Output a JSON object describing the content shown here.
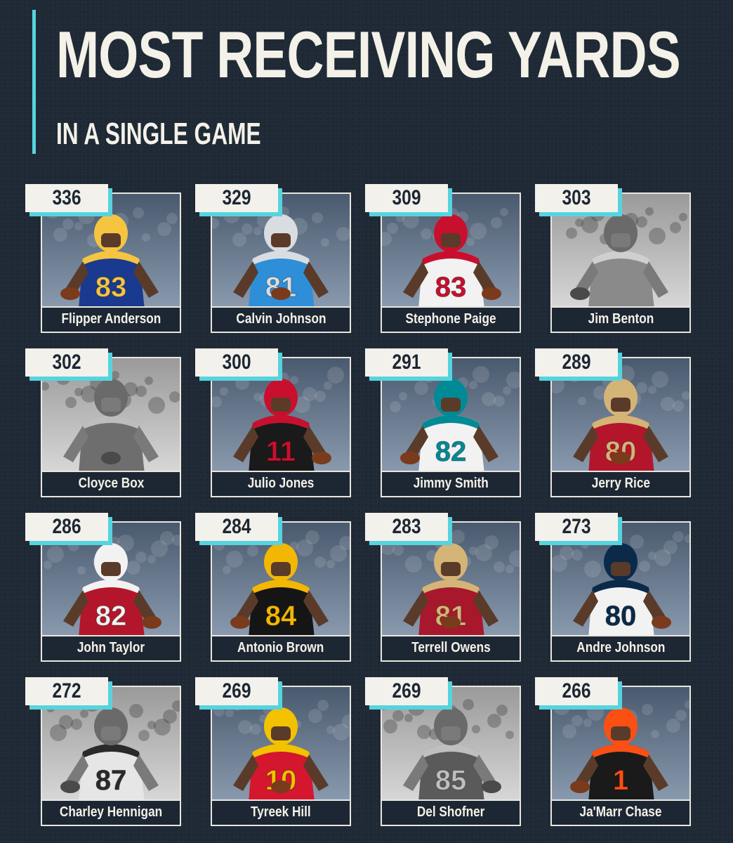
{
  "header": {
    "title": "MOST RECEIVING YARDS",
    "subtitle": "IN A SINGLE GAME"
  },
  "colors": {
    "background": "#1f2a36",
    "accent": "#56d4de",
    "text": "#f4f1e8"
  },
  "players": [
    {
      "yards": "336",
      "name": "Flipper Anderson",
      "jersey": "83",
      "team_color": "#1a3a8f",
      "trim": "#f5c542",
      "bw": false
    },
    {
      "yards": "329",
      "name": "Calvin Johnson",
      "jersey": "81",
      "team_color": "#2e8fd8",
      "trim": "#d9dde2",
      "bw": false
    },
    {
      "yards": "309",
      "name": "Stephone Paige",
      "jersey": "83",
      "team_color": "#f2f2f2",
      "trim": "#c8102e",
      "bw": false
    },
    {
      "yards": "303",
      "name": "Jim Benton",
      "jersey": "",
      "team_color": "#8a8a8a",
      "trim": "#cfcfcf",
      "bw": true
    },
    {
      "yards": "302",
      "name": "Cloyce Box",
      "jersey": "",
      "team_color": "#6e6e6e",
      "trim": "#bdbdbd",
      "bw": true
    },
    {
      "yards": "300",
      "name": "Julio Jones",
      "jersey": "11",
      "team_color": "#1a1a1a",
      "trim": "#c8102e",
      "bw": false
    },
    {
      "yards": "291",
      "name": "Jimmy Smith",
      "jersey": "82",
      "team_color": "#f2f2f2",
      "trim": "#008a96",
      "bw": false
    },
    {
      "yards": "289",
      "name": "Jerry Rice",
      "jersey": "80",
      "team_color": "#b3162b",
      "trim": "#d4b477",
      "bw": false
    },
    {
      "yards": "286",
      "name": "John Taylor",
      "jersey": "82",
      "team_color": "#b3162b",
      "trim": "#f2f2f2",
      "bw": false
    },
    {
      "yards": "284",
      "name": "Antonio Brown",
      "jersey": "84",
      "team_color": "#151515",
      "trim": "#f2b705",
      "bw": false
    },
    {
      "yards": "283",
      "name": "Terrell Owens",
      "jersey": "81",
      "team_color": "#a8182c",
      "trim": "#d4b477",
      "bw": false
    },
    {
      "yards": "273",
      "name": "Andre Johnson",
      "jersey": "80",
      "team_color": "#f2f2f2",
      "trim": "#0b2a4a",
      "bw": false
    },
    {
      "yards": "272",
      "name": "Charley Hennigan",
      "jersey": "87",
      "team_color": "#e6e6e6",
      "trim": "#2a2a2a",
      "bw": true
    },
    {
      "yards": "269",
      "name": "Tyreek Hill",
      "jersey": "10",
      "team_color": "#d4162e",
      "trim": "#f2c200",
      "bw": false
    },
    {
      "yards": "269",
      "name": "Del Shofner",
      "jersey": "85",
      "team_color": "#5a5a5a",
      "trim": "#bfbfbf",
      "bw": true
    },
    {
      "yards": "266",
      "name": "Ja'Marr Chase",
      "jersey": "1",
      "team_color": "#1a1a1a",
      "trim": "#fb4f14",
      "bw": false
    }
  ]
}
